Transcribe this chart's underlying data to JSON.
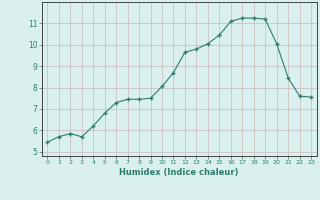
{
  "x": [
    0,
    1,
    2,
    3,
    4,
    5,
    6,
    7,
    8,
    9,
    10,
    11,
    12,
    13,
    14,
    15,
    16,
    17,
    18,
    19,
    20,
    21,
    22,
    23
  ],
  "y": [
    5.45,
    5.7,
    5.85,
    5.7,
    6.2,
    6.8,
    7.3,
    7.45,
    7.45,
    7.5,
    8.05,
    8.7,
    9.65,
    9.8,
    10.05,
    10.45,
    11.1,
    11.25,
    11.25,
    11.2,
    10.05,
    8.45,
    7.6,
    7.55
  ],
  "xlabel": "Humidex (Indice chaleur)",
  "xlim": [
    -0.5,
    23.5
  ],
  "ylim": [
    4.8,
    12.0
  ],
  "yticks": [
    5,
    6,
    7,
    8,
    9,
    10,
    11
  ],
  "xticks": [
    0,
    1,
    2,
    3,
    4,
    5,
    6,
    7,
    8,
    9,
    10,
    11,
    12,
    13,
    14,
    15,
    16,
    17,
    18,
    19,
    20,
    21,
    22,
    23
  ],
  "line_color": "#2d7d6e",
  "marker_color": "#2d7d6e",
  "bg_color": "#d9f0ee",
  "grid_color": "#c8b8b8",
  "axis_color": "#444444",
  "tick_color": "#2d7d6e"
}
